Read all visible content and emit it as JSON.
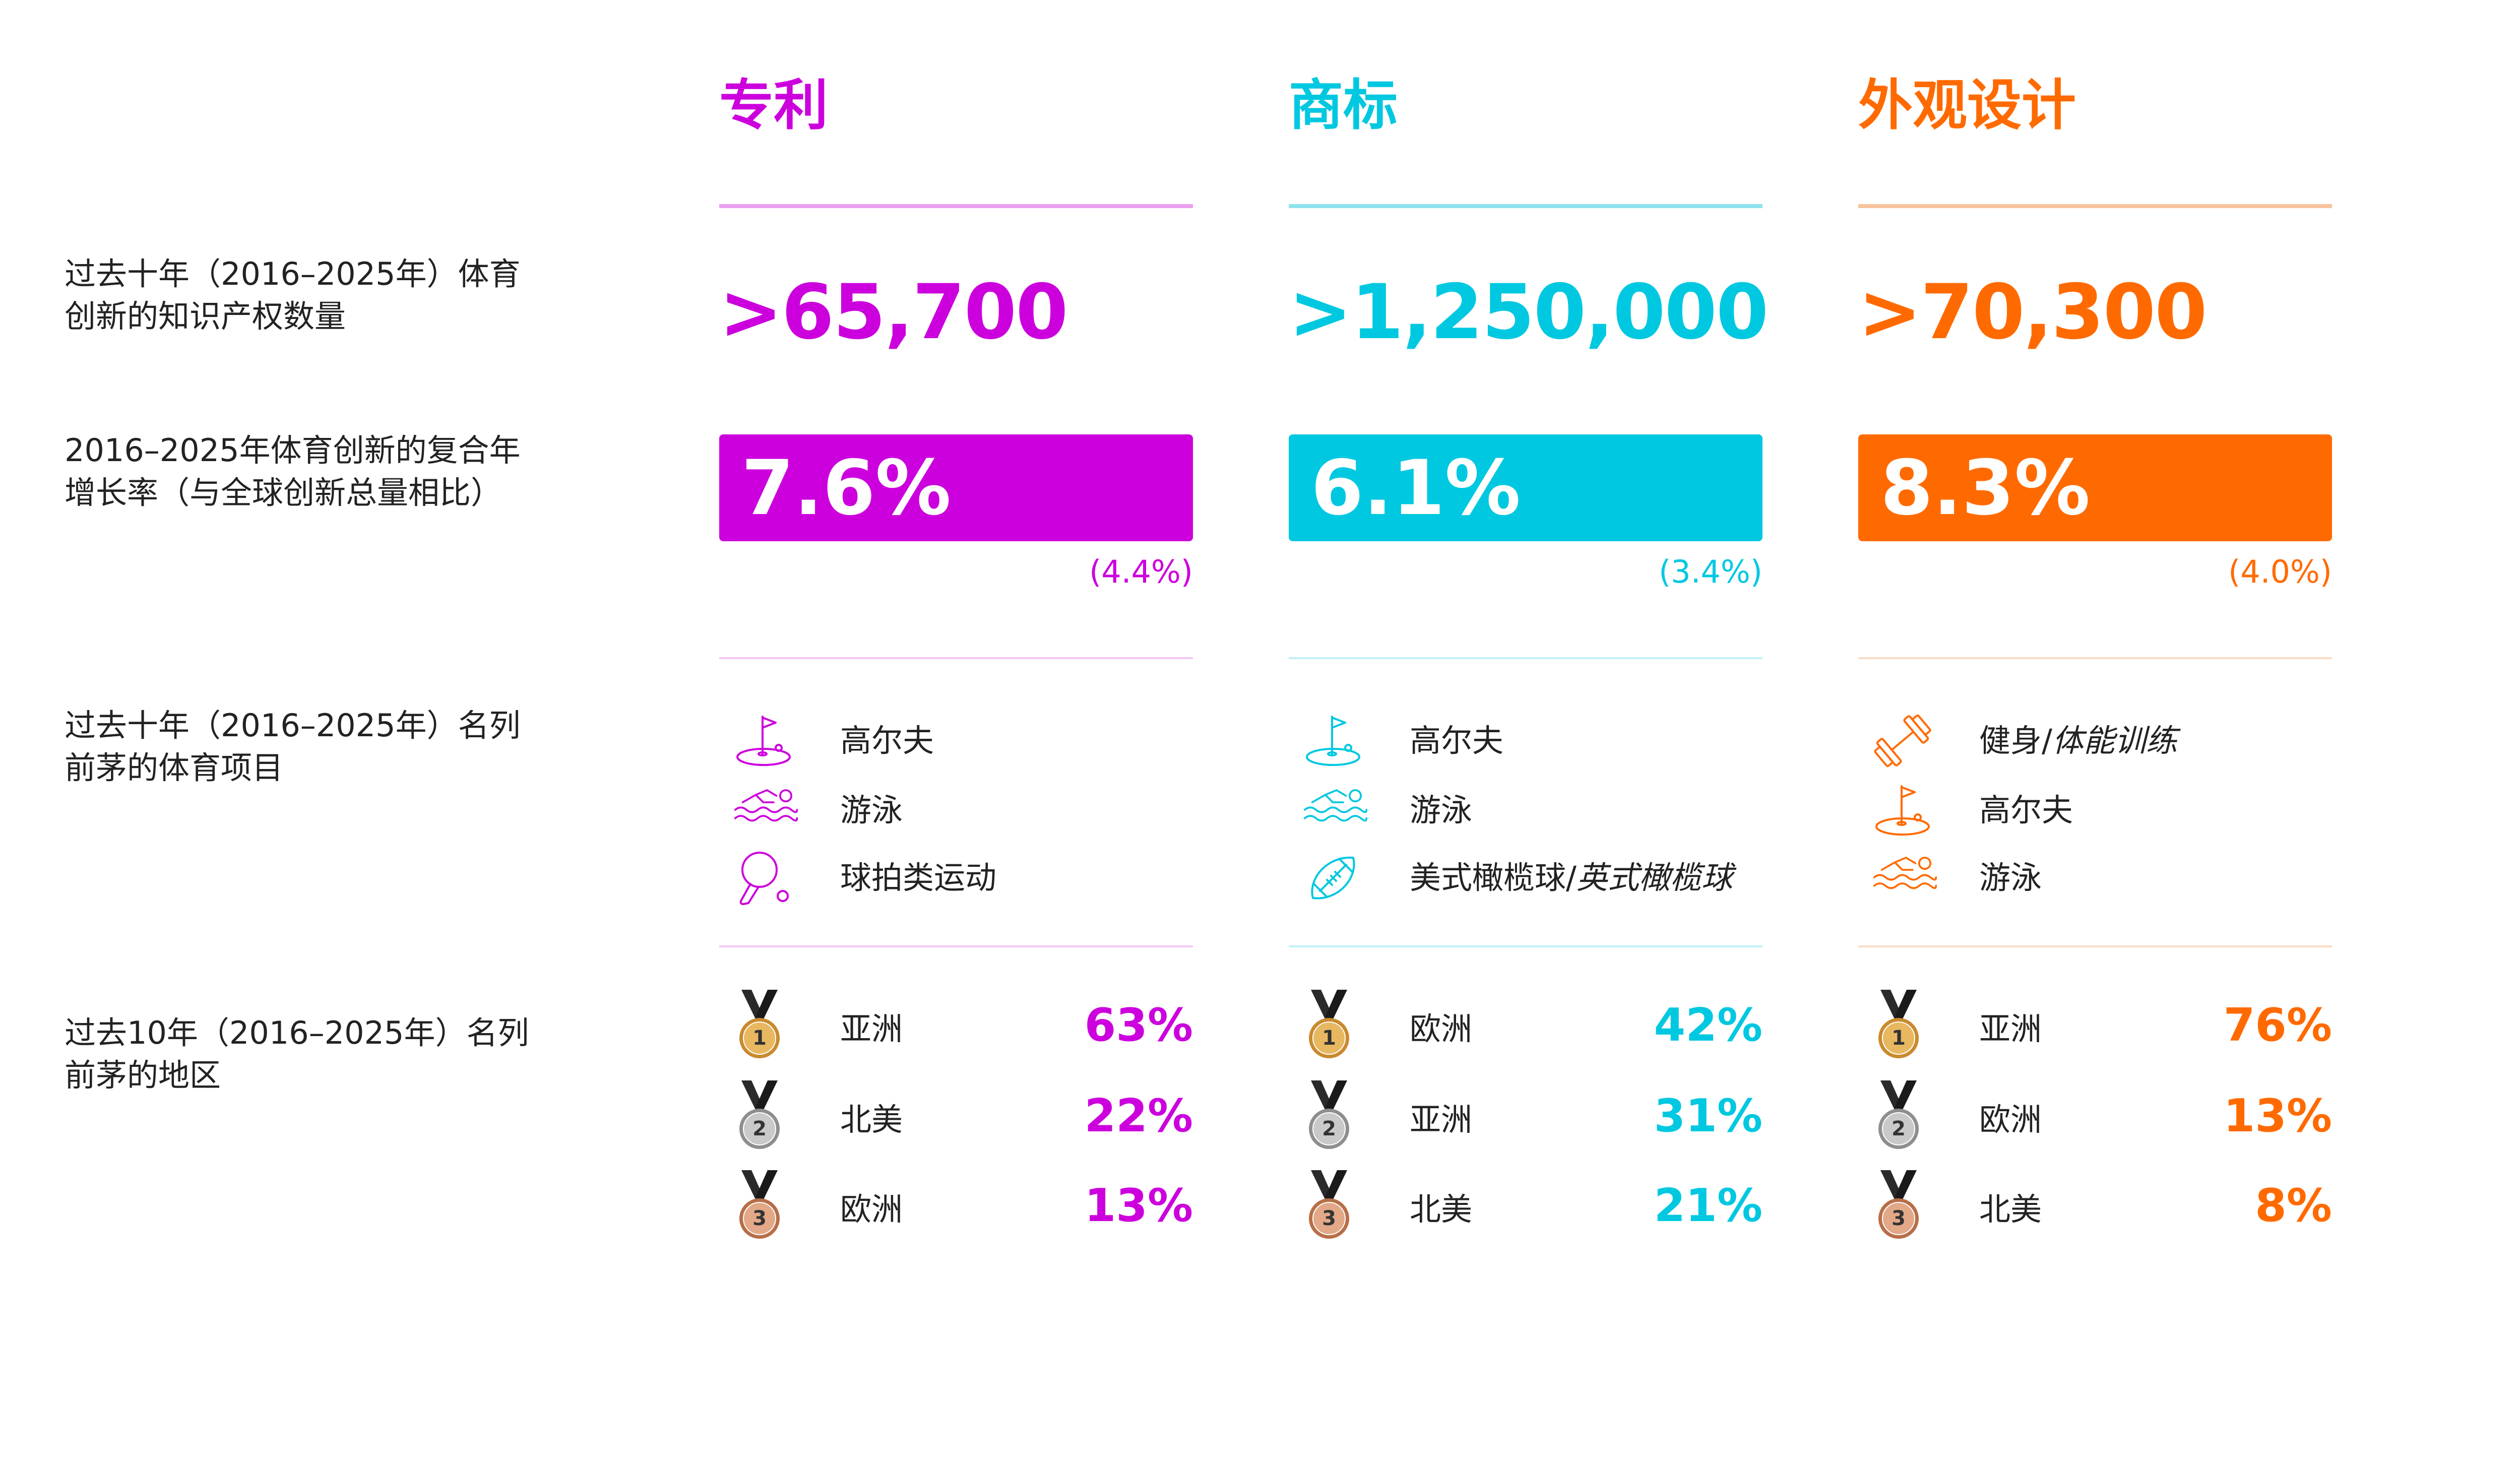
{
  "row_labels": {
    "total_ip": [
      "过去十年（2016–2025年）体育",
      "创新的知识产权数量"
    ],
    "cagr": [
      "2016–2025年体育创新的复合年",
      "增长率（与全球创新总量相比）"
    ],
    "top_sports": [
      "过去十年（2016–2025年）名列",
      "前茅的体育项目"
    ],
    "top_regions": [
      "过去10年（2016–2025年）名列",
      "前茅的地区"
    ]
  },
  "columns": [
    {
      "key": "patents",
      "title": "专利",
      "color": "#CC00DD",
      "light": "#E9A0F0",
      "pale": "#F3C8F6",
      "total": ">65,700",
      "cagr": "7.6%",
      "global_cagr": "(4.4%)",
      "sports": [
        {
          "icon": "golf-icon",
          "label": "高尔夫",
          "label_italic": ""
        },
        {
          "icon": "swimming-icon",
          "label": "游泳",
          "label_italic": ""
        },
        {
          "icon": "racket-sports-icon",
          "label": "球拍类运动",
          "label_italic": ""
        }
      ],
      "regions": [
        {
          "rank": "1",
          "region": "亚洲",
          "share": "63%"
        },
        {
          "rank": "2",
          "region": "北美",
          "share": "22%"
        },
        {
          "rank": "3",
          "region": "欧洲",
          "share": "13%"
        }
      ]
    },
    {
      "key": "trademarks",
      "title": "商标",
      "color": "#00C8E0",
      "light": "#8FE3EE",
      "pale": "#C2EFF5",
      "total": ">1,250,000",
      "cagr": "6.1%",
      "global_cagr": "(3.4%)",
      "sports": [
        {
          "icon": "golf-icon",
          "label": "高尔夫",
          "label_italic": ""
        },
        {
          "icon": "swimming-icon",
          "label": "游泳",
          "label_italic": ""
        },
        {
          "icon": "american-football-icon",
          "label": "美式橄榄球/",
          "label_italic": "英式橄榄球"
        }
      ],
      "regions": [
        {
          "rank": "1",
          "region": "欧洲",
          "share": "42%"
        },
        {
          "rank": "2",
          "region": "亚洲",
          "share": "31%"
        },
        {
          "rank": "3",
          "region": "北美",
          "share": "21%"
        }
      ]
    },
    {
      "key": "designs",
      "title": "外观设计",
      "color": "#FF6A00",
      "light": "#F7C39C",
      "pale": "#F9DCC6",
      "total": ">70,300",
      "cagr": "8.3%",
      "global_cagr": "(4.0%)",
      "sports": [
        {
          "icon": "dumbbell-icon",
          "label": "健身/",
          "label_italic": "体能训练"
        },
        {
          "icon": "golf-icon",
          "label": "高尔夫",
          "label_italic": ""
        },
        {
          "icon": "swimming-icon",
          "label": "游泳",
          "label_italic": ""
        }
      ],
      "regions": [
        {
          "rank": "1",
          "region": "亚洲",
          "share": "76%"
        },
        {
          "rank": "2",
          "region": "欧洲",
          "share": "13%"
        },
        {
          "rank": "3",
          "region": "北美",
          "share": "8%"
        }
      ]
    }
  ]
}
